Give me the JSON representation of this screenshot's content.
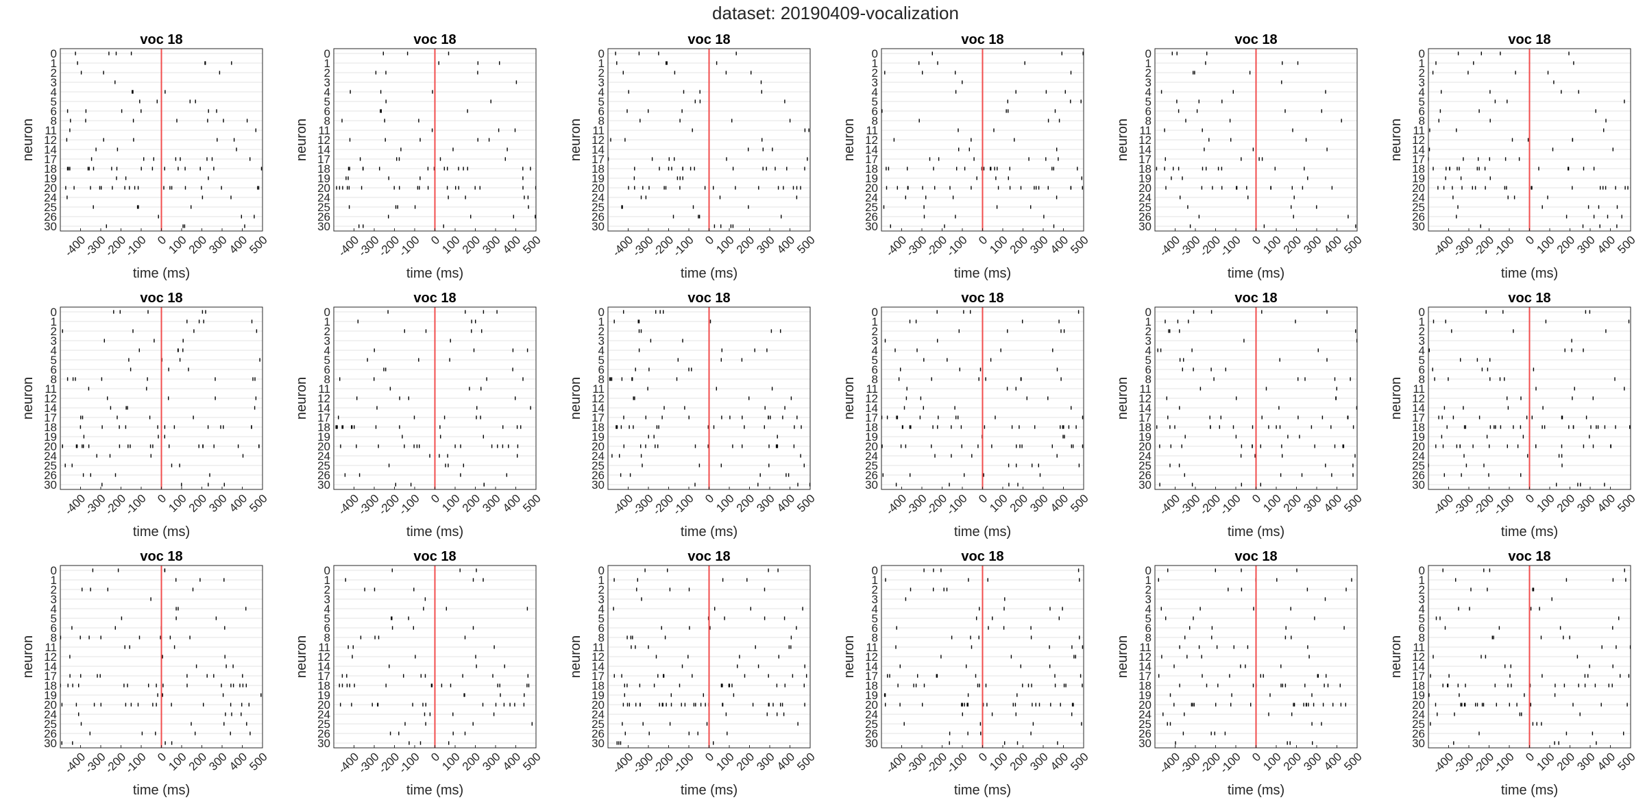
{
  "figure": {
    "title": "dataset: 20190409-vocalization"
  },
  "chart_data": {
    "type": "scatter",
    "subtype": "spike-raster",
    "layout": {
      "rows": 3,
      "cols": 6
    },
    "panel_title": "voc 18",
    "xlabel": "time (ms)",
    "ylabel": "neuron",
    "xlim": [
      -500,
      500
    ],
    "x_tick_labels": [
      "-400",
      "-300",
      "-200",
      "-100",
      "0",
      "100",
      "200",
      "300",
      "400",
      "500"
    ],
    "x_ticks": [
      -400,
      -300,
      -200,
      -100,
      0,
      100,
      200,
      300,
      400,
      500
    ],
    "y_tick_labels": [
      "0",
      "1",
      "2",
      "3",
      "4",
      "5",
      "6",
      "8",
      "11",
      "12",
      "14",
      "17",
      "18",
      "19",
      "20",
      "24",
      "25",
      "26",
      "30"
    ],
    "event_line": {
      "x": 0,
      "color": "#f24d4d"
    },
    "grid": true,
    "marker_color": "#000000",
    "panels": [
      {
        "title": "voc 18",
        "seed": 11,
        "rates": [
          4,
          4,
          3,
          1,
          3,
          4,
          6,
          7,
          2,
          5,
          3,
          8,
          16,
          3,
          18,
          3,
          4,
          3,
          4
        ]
      },
      {
        "title": "voc 18",
        "seed": 23,
        "rates": [
          3,
          3,
          3,
          1,
          3,
          2,
          3,
          3,
          3,
          5,
          3,
          5,
          14,
          5,
          18,
          4,
          5,
          4,
          3
        ]
      },
      {
        "title": "voc 18",
        "seed": 37,
        "rates": [
          4,
          4,
          4,
          1,
          4,
          3,
          3,
          4,
          3,
          3,
          3,
          6,
          14,
          4,
          16,
          4,
          4,
          4,
          4
        ]
      },
      {
        "title": "voc 18",
        "seed": 41,
        "rates": [
          3,
          3,
          4,
          1,
          4,
          3,
          4,
          3,
          2,
          3,
          3,
          6,
          16,
          4,
          18,
          4,
          4,
          3,
          3
        ]
      },
      {
        "title": "voc 18",
        "seed": 53,
        "rates": [
          3,
          3,
          3,
          1,
          3,
          3,
          4,
          3,
          3,
          3,
          3,
          4,
          10,
          3,
          12,
          3,
          3,
          3,
          3
        ]
      },
      {
        "title": "voc 18",
        "seed": 67,
        "rates": [
          4,
          3,
          4,
          1,
          4,
          3,
          3,
          3,
          3,
          4,
          3,
          6,
          14,
          3,
          18,
          4,
          5,
          5,
          4
        ]
      },
      {
        "title": "voc 18",
        "seed": 71,
        "rates": [
          5,
          4,
          4,
          3,
          4,
          4,
          3,
          8,
          2,
          4,
          4,
          5,
          12,
          3,
          20,
          4,
          4,
          4,
          4
        ]
      },
      {
        "title": "voc 18",
        "seed": 83,
        "rates": [
          4,
          3,
          4,
          1,
          4,
          3,
          3,
          4,
          3,
          4,
          3,
          5,
          14,
          3,
          14,
          4,
          4,
          4,
          4
        ]
      },
      {
        "title": "voc 18",
        "seed": 97,
        "rates": [
          4,
          4,
          4,
          2,
          4,
          3,
          4,
          7,
          3,
          4,
          4,
          12,
          14,
          3,
          14,
          4,
          5,
          5,
          4
        ]
      },
      {
        "title": "voc 18",
        "seed": 101,
        "rates": [
          4,
          4,
          4,
          2,
          4,
          3,
          4,
          7,
          3,
          4,
          4,
          10,
          18,
          3,
          14,
          4,
          5,
          5,
          4
        ]
      },
      {
        "title": "voc 18",
        "seed": 113,
        "rates": [
          4,
          4,
          4,
          2,
          4,
          4,
          4,
          5,
          3,
          4,
          4,
          8,
          14,
          4,
          12,
          4,
          4,
          5,
          4
        ]
      },
      {
        "title": "voc 18",
        "seed": 127,
        "rates": [
          4,
          4,
          3,
          1,
          4,
          3,
          4,
          6,
          3,
          4,
          4,
          10,
          20,
          4,
          16,
          4,
          4,
          4,
          4
        ]
      },
      {
        "title": "voc 18",
        "seed": 131,
        "rates": [
          4,
          3,
          4,
          1,
          3,
          3,
          4,
          8,
          3,
          3,
          3,
          8,
          16,
          4,
          14,
          4,
          4,
          6,
          4
        ]
      },
      {
        "title": "voc 18",
        "seed": 137,
        "rates": [
          3,
          3,
          3,
          1,
          3,
          3,
          3,
          4,
          3,
          3,
          3,
          8,
          14,
          4,
          14,
          4,
          4,
          4,
          3
        ]
      },
      {
        "title": "voc 18",
        "seed": 149,
        "rates": [
          4,
          4,
          4,
          1,
          4,
          4,
          4,
          5,
          6,
          4,
          4,
          10,
          14,
          4,
          28,
          4,
          5,
          5,
          4
        ]
      },
      {
        "title": "voc 18",
        "seed": 151,
        "rates": [
          4,
          4,
          4,
          2,
          4,
          3,
          4,
          5,
          5,
          4,
          4,
          8,
          14,
          4,
          20,
          4,
          4,
          4,
          4
        ]
      },
      {
        "title": "voc 18",
        "seed": 163,
        "rates": [
          4,
          4,
          4,
          1,
          4,
          3,
          4,
          4,
          6,
          4,
          4,
          8,
          12,
          4,
          18,
          4,
          4,
          4,
          4
        ]
      },
      {
        "title": "voc 18",
        "seed": 173,
        "rates": [
          4,
          4,
          4,
          1,
          4,
          3,
          4,
          5,
          3,
          4,
          4,
          8,
          16,
          4,
          16,
          5,
          4,
          4,
          4
        ]
      }
    ]
  }
}
